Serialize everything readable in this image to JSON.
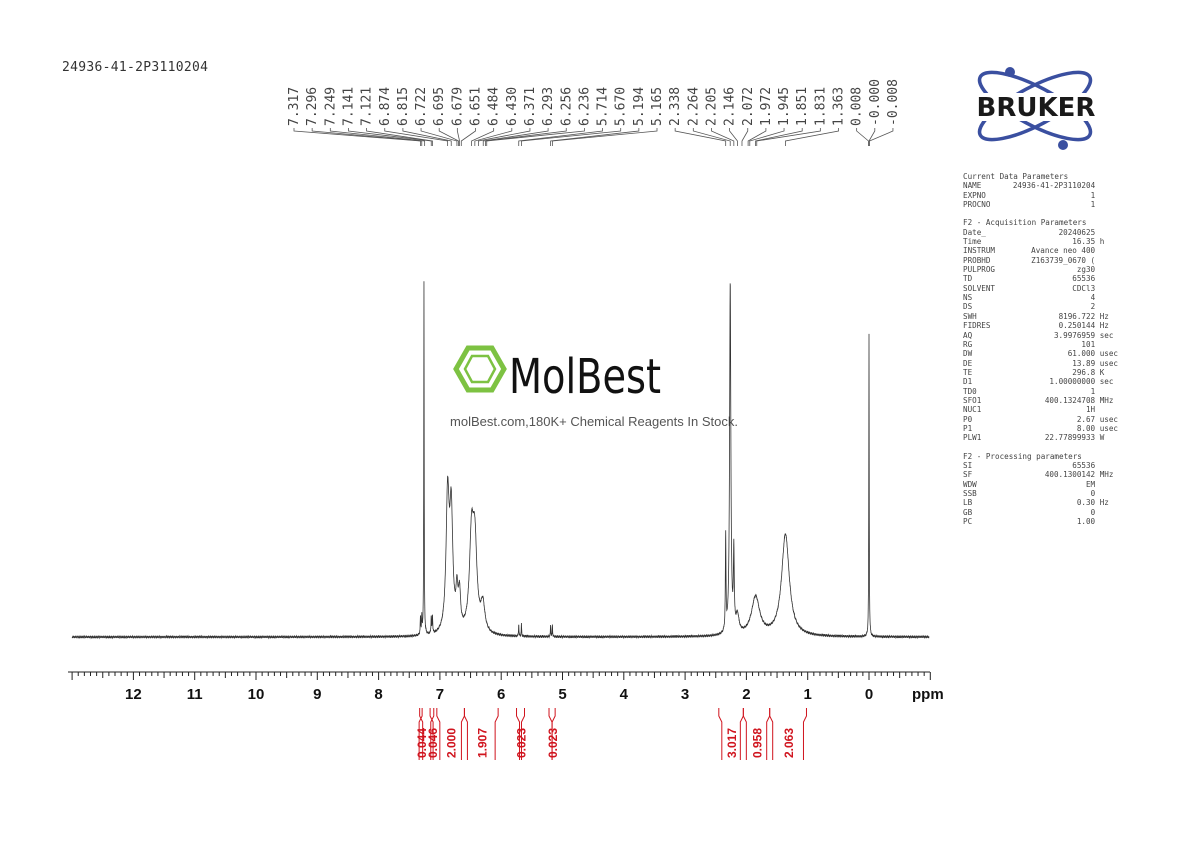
{
  "sample_id": "24936-41-2P3110204",
  "brand": {
    "name": "BRUKER",
    "colors": {
      "text": "#1a1a1a",
      "ring": "#3a4fa0",
      "dot": "#3a4fa0"
    }
  },
  "watermark": {
    "name": "MolBest",
    "tagline": "molBest.com,180K+ Chemical Reagents In Stock.",
    "icon": "benzene-ring-icon",
    "colors": {
      "icon": "#7dc242",
      "text": "#111111",
      "tagline": "#555555"
    }
  },
  "parameters": {
    "current": {
      "heading": "Current Data Parameters",
      "rows": [
        {
          "key": "NAME",
          "value": "24936-41-2P3110204",
          "unit": ""
        },
        {
          "key": "EXPNO",
          "value": "1",
          "unit": ""
        },
        {
          "key": "PROCNO",
          "value": "1",
          "unit": ""
        }
      ]
    },
    "acquisition": {
      "heading": "F2 - Acquisition Parameters",
      "rows": [
        {
          "key": "Date_",
          "value": "20240625",
          "unit": ""
        },
        {
          "key": "Time",
          "value": "16.35",
          "unit": "h"
        },
        {
          "key": "INSTRUM",
          "value": "Avance neo 400",
          "unit": ""
        },
        {
          "key": "PROBHD",
          "value": "Z163739_0670 (",
          "unit": ""
        },
        {
          "key": "PULPROG",
          "value": "zg30",
          "unit": ""
        },
        {
          "key": "TD",
          "value": "65536",
          "unit": ""
        },
        {
          "key": "SOLVENT",
          "value": "CDCl3",
          "unit": ""
        },
        {
          "key": "NS",
          "value": "4",
          "unit": ""
        },
        {
          "key": "DS",
          "value": "2",
          "unit": ""
        },
        {
          "key": "SWH",
          "value": "8196.722",
          "unit": "Hz"
        },
        {
          "key": "FIDRES",
          "value": "0.250144",
          "unit": "Hz"
        },
        {
          "key": "AQ",
          "value": "3.9976959",
          "unit": "sec"
        },
        {
          "key": "RG",
          "value": "101",
          "unit": ""
        },
        {
          "key": "DW",
          "value": "61.000",
          "unit": "usec"
        },
        {
          "key": "DE",
          "value": "13.89",
          "unit": "usec"
        },
        {
          "key": "TE",
          "value": "296.8",
          "unit": "K"
        },
        {
          "key": "D1",
          "value": "1.00000000",
          "unit": "sec"
        },
        {
          "key": "TD0",
          "value": "1",
          "unit": ""
        },
        {
          "key": "SFO1",
          "value": "400.1324708",
          "unit": "MHz"
        },
        {
          "key": "NUC1",
          "value": "1H",
          "unit": ""
        },
        {
          "key": "P0",
          "value": "2.67",
          "unit": "usec"
        },
        {
          "key": "P1",
          "value": "8.00",
          "unit": "usec"
        },
        {
          "key": "PLW1",
          "value": "22.77899933",
          "unit": "W"
        }
      ]
    },
    "processing": {
      "heading": "F2 - Processing parameters",
      "rows": [
        {
          "key": "SI",
          "value": "65536",
          "unit": ""
        },
        {
          "key": "SF",
          "value": "400.1300142",
          "unit": "MHz"
        },
        {
          "key": "WDW",
          "value": "EM",
          "unit": ""
        },
        {
          "key": "SSB",
          "value": "0",
          "unit": ""
        },
        {
          "key": "LB",
          "value": "0.30",
          "unit": "Hz"
        },
        {
          "key": "GB",
          "value": "0",
          "unit": ""
        },
        {
          "key": "PC",
          "value": "1.00",
          "unit": ""
        }
      ]
    }
  },
  "chart_data": {
    "type": "line",
    "title": "",
    "xlabel": "ppm",
    "ylabel": "",
    "xlim": [
      13.0,
      -1.0
    ],
    "x_reversed": true,
    "xticks": [
      "12",
      "11",
      "10",
      "9",
      "8",
      "7",
      "6",
      "5",
      "4",
      "3",
      "2",
      "1",
      "0"
    ],
    "grid": false,
    "colors": {
      "trace": "#333333",
      "peak_labels": "#444444",
      "integrals": "#d0141e",
      "axis": "#222222"
    },
    "peak_labels": [
      "7.317",
      "7.296",
      "7.249",
      "7.141",
      "7.121",
      "6.874",
      "6.815",
      "6.722",
      "6.695",
      "6.679",
      "6.651",
      "6.484",
      "6.430",
      "6.371",
      "6.293",
      "6.256",
      "6.236",
      "5.714",
      "5.670",
      "5.194",
      "5.165",
      "2.338",
      "2.264",
      "2.205",
      "2.146",
      "2.072",
      "1.972",
      "1.945",
      "1.851",
      "1.831",
      "1.363",
      "0.008",
      "-0.000",
      "-0.008"
    ],
    "peaks": [
      {
        "ppm": 7.317,
        "height": 0.05,
        "width": 0.005
      },
      {
        "ppm": 7.296,
        "height": 0.05,
        "width": 0.005
      },
      {
        "ppm": 7.26,
        "height": 1.0,
        "width": 0.004
      },
      {
        "ppm": 7.141,
        "height": 0.05,
        "width": 0.005
      },
      {
        "ppm": 7.121,
        "height": 0.05,
        "width": 0.005
      },
      {
        "ppm": 6.874,
        "height": 0.38,
        "width": 0.03
      },
      {
        "ppm": 6.815,
        "height": 0.33,
        "width": 0.03
      },
      {
        "ppm": 6.722,
        "height": 0.1,
        "width": 0.02
      },
      {
        "ppm": 6.68,
        "height": 0.1,
        "width": 0.02
      },
      {
        "ppm": 6.484,
        "height": 0.26,
        "width": 0.04
      },
      {
        "ppm": 6.43,
        "height": 0.24,
        "width": 0.04
      },
      {
        "ppm": 6.3,
        "height": 0.08,
        "width": 0.04
      },
      {
        "ppm": 5.714,
        "height": 0.035,
        "width": 0.004
      },
      {
        "ppm": 5.67,
        "height": 0.035,
        "width": 0.004
      },
      {
        "ppm": 5.194,
        "height": 0.035,
        "width": 0.004
      },
      {
        "ppm": 5.165,
        "height": 0.035,
        "width": 0.004
      },
      {
        "ppm": 2.338,
        "height": 0.27,
        "width": 0.006
      },
      {
        "ppm": 2.264,
        "height": 1.0,
        "width": 0.012
      },
      {
        "ppm": 2.205,
        "height": 0.22,
        "width": 0.008
      },
      {
        "ppm": 2.146,
        "height": 0.05,
        "width": 0.03
      },
      {
        "ppm": 1.85,
        "height": 0.11,
        "width": 0.08
      },
      {
        "ppm": 1.363,
        "height": 0.29,
        "width": 0.075
      },
      {
        "ppm": 0.0,
        "height": 0.86,
        "width": 0.004
      }
    ],
    "integrals": [
      {
        "value": "0.044",
        "from": 7.33,
        "to": 7.29
      },
      {
        "value": "0.046",
        "from": 7.16,
        "to": 7.1
      },
      {
        "value": "2.000",
        "from": 7.05,
        "to": 6.6
      },
      {
        "value": "1.907",
        "from": 6.6,
        "to": 6.05
      },
      {
        "value": "0.023",
        "from": 5.75,
        "to": 5.62
      },
      {
        "value": "0.023",
        "from": 5.22,
        "to": 5.12
      },
      {
        "value": "3.017",
        "from": 2.45,
        "to": 2.05
      },
      {
        "value": "0.958",
        "from": 2.05,
        "to": 1.62
      },
      {
        "value": "2.063",
        "from": 1.62,
        "to": 1.02
      }
    ]
  }
}
